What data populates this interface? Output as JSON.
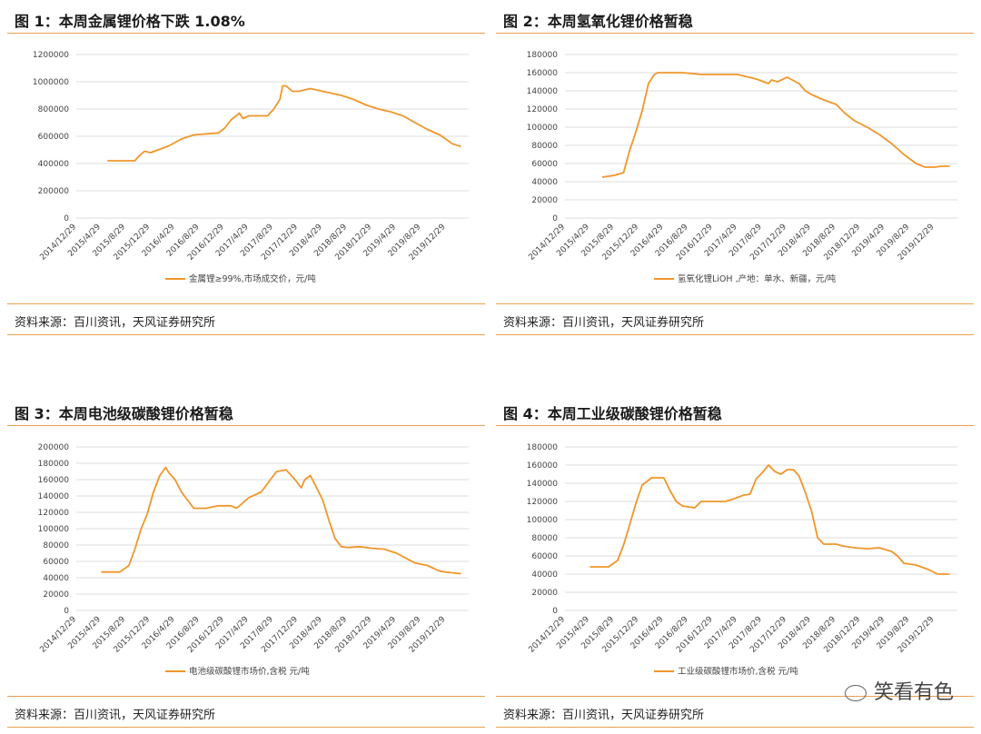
{
  "panels": [
    {
      "title": "图 1：本周金属锂价格下跌 1.08%",
      "source": "资料来源：百川资讯，天风证券研究所"
    },
    {
      "title": "图 2：本周氢氧化锂价格暂稳",
      "source": "资料来源：百川资讯，天风证券研究所"
    },
    {
      "title": "图 3：本周电池级碳酸锂价格暂稳",
      "source": "资料来源：百川资讯，天风证券研究所"
    },
    {
      "title": "图 4：本周工业级碳酸锂价格暂稳",
      "source": "资料来源：百川资讯，天风证券研究所"
    }
  ],
  "watermark": "笑看有色",
  "chart_data": [
    {
      "type": "line",
      "x_ticks": [
        "2014/12/29",
        "2015/4/29",
        "2015/8/29",
        "2015/12/29",
        "2016/4/29",
        "2016/8/29",
        "2016/12/29",
        "2017/4/29",
        "2017/8/29",
        "2017/12/29",
        "2018/4/29",
        "2018/8/29",
        "2018/12/29",
        "2019/4/29",
        "2019/8/29",
        "2019/12/29"
      ],
      "y_ticks": [
        0,
        200000,
        400000,
        600000,
        800000,
        1000000,
        1200000
      ],
      "ylim": [
        0,
        1200000
      ],
      "grid": true,
      "legend_position": "bottom",
      "color": "#f0962a",
      "series": [
        {
          "name": "金属锂≥99%,市场成交价，元/吨",
          "x": [
            "2015/6/1",
            "2015/10/15",
            "2015/11/1",
            "2015/12/1",
            "2016/1/1",
            "2016/4/1",
            "2016/6/1",
            "2016/8/1",
            "2016/12/1",
            "2017/1/1",
            "2017/2/1",
            "2017/3/15",
            "2017/4/1",
            "2017/5/1",
            "2017/8/1",
            "2017/9/1",
            "2017/10/1",
            "2017/10/15",
            "2017/11/1",
            "2017/12/1",
            "2018/1/1",
            "2018/3/1",
            "2018/5/1",
            "2018/8/1",
            "2018/10/1",
            "2018/12/1",
            "2019/2/1",
            "2019/4/1",
            "2019/6/1",
            "2019/8/1",
            "2019/10/1",
            "2019/12/1",
            "2020/2/1",
            "2020/3/15"
          ],
          "values": [
            420000,
            420000,
            450000,
            490000,
            480000,
            530000,
            580000,
            610000,
            625000,
            660000,
            720000,
            770000,
            730000,
            750000,
            750000,
            800000,
            870000,
            970000,
            970000,
            930000,
            930000,
            950000,
            930000,
            900000,
            870000,
            830000,
            800000,
            780000,
            750000,
            700000,
            650000,
            610000,
            545000,
            525000
          ]
        }
      ]
    },
    {
      "type": "line",
      "x_ticks": [
        "2014/12/29",
        "2015/4/29",
        "2015/8/29",
        "2015/12/29",
        "2016/4/29",
        "2016/8/29",
        "2016/12/29",
        "2017/4/29",
        "2017/8/29",
        "2017/12/29",
        "2018/4/29",
        "2018/8/29",
        "2018/12/29",
        "2019/4/29",
        "2019/8/29",
        "2019/12/29"
      ],
      "y_ticks": [
        0,
        20000,
        40000,
        60000,
        80000,
        100000,
        120000,
        140000,
        160000,
        180000
      ],
      "ylim": [
        0,
        180000
      ],
      "grid": true,
      "legend_position": "bottom",
      "color": "#f0962a",
      "series": [
        {
          "name": "氢氧化锂LiOH ,产地：单水、新疆，元/吨",
          "x": [
            "2015/7/1",
            "2015/9/1",
            "2015/10/15",
            "2015/11/15",
            "2015/12/15",
            "2016/1/15",
            "2016/2/15",
            "2016/3/15",
            "2016/4/1",
            "2016/8/1",
            "2016/11/1",
            "2017/5/1",
            "2017/8/1",
            "2017/10/1",
            "2017/10/15",
            "2017/11/15",
            "2018/1/1",
            "2018/3/1",
            "2018/4/1",
            "2018/5/1",
            "2018/7/1",
            "2018/9/1",
            "2018/10/15",
            "2018/12/1",
            "2019/2/1",
            "2019/4/1",
            "2019/6/1",
            "2019/8/1",
            "2019/10/1",
            "2019/11/15",
            "2020/1/1",
            "2020/2/1",
            "2020/3/15"
          ],
          "values": [
            45000,
            47000,
            50000,
            75000,
            95000,
            118000,
            148000,
            158000,
            160000,
            160000,
            158000,
            158000,
            153000,
            148000,
            152000,
            150000,
            155000,
            148000,
            140000,
            136000,
            130000,
            125000,
            115000,
            107000,
            100000,
            92000,
            82000,
            70000,
            60000,
            56000,
            56000,
            57000,
            57000
          ]
        }
      ]
    },
    {
      "type": "line",
      "x_ticks": [
        "2014/12/29",
        "2015/4/29",
        "2015/8/29",
        "2015/12/29",
        "2016/4/29",
        "2016/8/29",
        "2016/12/29",
        "2017/4/29",
        "2017/8/29",
        "2017/12/29",
        "2018/4/29",
        "2018/8/29",
        "2018/12/29",
        "2019/4/29",
        "2019/8/29",
        "2019/12/29"
      ],
      "y_ticks": [
        0,
        20000,
        40000,
        60000,
        80000,
        100000,
        120000,
        140000,
        160000,
        180000,
        200000
      ],
      "ylim": [
        0,
        200000
      ],
      "grid": true,
      "legend_position": "bottom",
      "color": "#f0962a",
      "series": [
        {
          "name": "电池级碳酸锂市场价,含税 元/吨",
          "x": [
            "2015/5/1",
            "2015/8/1",
            "2015/9/15",
            "2015/10/15",
            "2015/11/15",
            "2015/12/15",
            "2016/1/15",
            "2016/2/15",
            "2016/3/1",
            "2016/3/15",
            "2016/4/1",
            "2016/5/1",
            "2016/6/1",
            "2016/7/1",
            "2016/8/1",
            "2016/10/1",
            "2016/12/1",
            "2017/2/1",
            "2017/3/1",
            "2017/5/1",
            "2017/7/1",
            "2017/8/15",
            "2017/9/15",
            "2017/11/1",
            "2017/12/15",
            "2018/1/15",
            "2018/2/1",
            "2018/3/1",
            "2018/4/1",
            "2018/5/1",
            "2018/6/1",
            "2018/7/1",
            "2018/8/1",
            "2018/9/1",
            "2018/11/1",
            "2019/1/1",
            "2019/3/1",
            "2019/5/1",
            "2019/7/1",
            "2019/8/1",
            "2019/10/1",
            "2019/12/1",
            "2020/2/1",
            "2020/3/15"
          ],
          "values": [
            47000,
            47000,
            55000,
            75000,
            100000,
            118000,
            145000,
            165000,
            170000,
            175000,
            168000,
            160000,
            145000,
            135000,
            125000,
            125000,
            128000,
            128000,
            125000,
            138000,
            145000,
            160000,
            170000,
            172000,
            160000,
            150000,
            160000,
            165000,
            150000,
            135000,
            110000,
            88000,
            78000,
            77000,
            78000,
            76000,
            75000,
            70000,
            62000,
            58000,
            55000,
            48000,
            46000,
            45000
          ]
        }
      ]
    },
    {
      "type": "line",
      "x_ticks": [
        "2014/12/29",
        "2015/4/29",
        "2015/8/29",
        "2015/12/29",
        "2016/4/29",
        "2016/8/29",
        "2016/12/29",
        "2017/4/29",
        "2017/8/29",
        "2017/12/29",
        "2018/4/29",
        "2018/8/29",
        "2018/12/29",
        "2019/4/29",
        "2019/8/29",
        "2019/12/29"
      ],
      "y_ticks": [
        0,
        20000,
        40000,
        60000,
        80000,
        100000,
        120000,
        140000,
        160000,
        180000
      ],
      "ylim": [
        0,
        180000
      ],
      "grid": true,
      "legend_position": "bottom",
      "color": "#f0962a",
      "series": [
        {
          "name": "工业级碳酸锂市场价,含税 元/吨",
          "x": [
            "2015/5/1",
            "2015/8/1",
            "2015/9/15",
            "2015/10/15",
            "2015/11/15",
            "2015/12/15",
            "2016/1/15",
            "2016/3/1",
            "2016/5/1",
            "2016/6/1",
            "2016/7/1",
            "2016/8/1",
            "2016/10/1",
            "2016/11/1",
            "2017/3/1",
            "2017/4/1",
            "2017/6/1",
            "2017/7/1",
            "2017/8/1",
            "2017/9/1",
            "2017/10/1",
            "2017/11/1",
            "2017/12/1",
            "2018/1/1",
            "2018/2/1",
            "2018/3/1",
            "2018/4/1",
            "2018/5/1",
            "2018/6/1",
            "2018/7/1",
            "2018/8/1",
            "2018/9/1",
            "2018/10/1",
            "2018/12/1",
            "2019/2/1",
            "2019/4/1",
            "2019/6/1",
            "2019/7/1",
            "2019/8/1",
            "2019/10/1",
            "2019/12/1",
            "2020/1/15",
            "2020/3/1",
            "2020/3/15"
          ],
          "values": [
            48000,
            48000,
            55000,
            72000,
            95000,
            118000,
            138000,
            146000,
            146000,
            132000,
            120000,
            115000,
            113000,
            120000,
            120000,
            122000,
            127000,
            128000,
            145000,
            152000,
            160000,
            153000,
            150000,
            155000,
            155000,
            148000,
            130000,
            110000,
            80000,
            73000,
            73000,
            73000,
            71000,
            69000,
            68000,
            69000,
            65000,
            60000,
            52000,
            50000,
            45000,
            40000,
            40000,
            40000
          ]
        }
      ]
    }
  ]
}
